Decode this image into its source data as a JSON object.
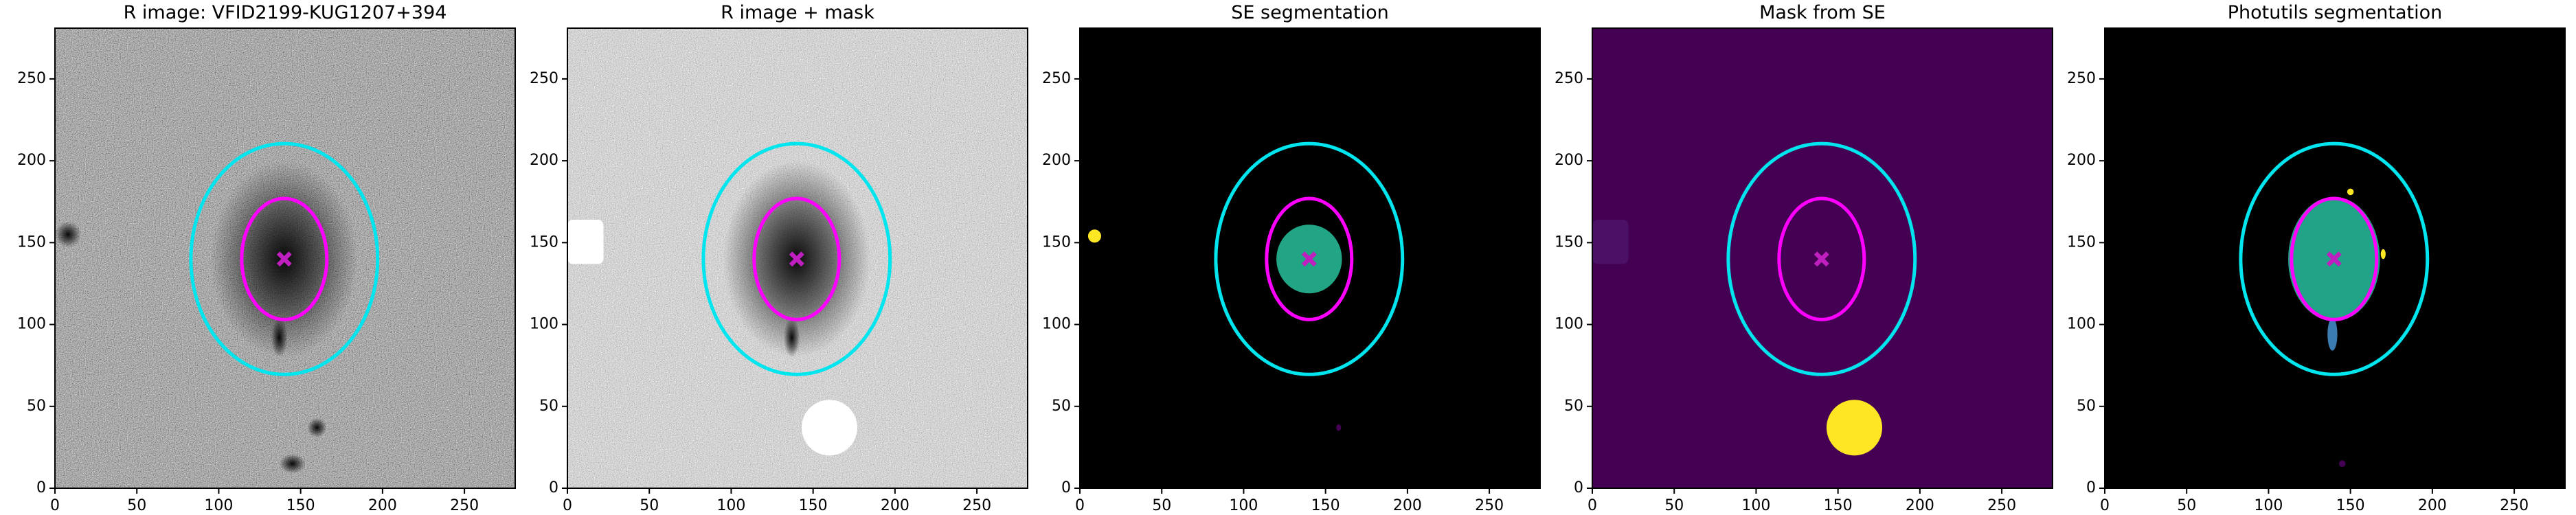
{
  "chart_data": [
    {
      "type": "image",
      "title": "R image: VFID2199-KUG1207+394",
      "background": "noise-dark",
      "xlim": [
        0,
        281
      ],
      "ylim": [
        0,
        281
      ],
      "xticks": [
        0,
        50,
        100,
        150,
        200,
        250
      ],
      "yticks": [
        0,
        50,
        100,
        150,
        200,
        250
      ],
      "regions": [
        {
          "shape": "ellipse",
          "cx": 140,
          "cy": 140,
          "rx": 45,
          "ry": 60,
          "color": "#000000",
          "fade": true
        },
        {
          "shape": "ellipse",
          "cx": 137,
          "cy": 92,
          "rx": 5,
          "ry": 12,
          "color": "#000000",
          "fade": true
        },
        {
          "shape": "ellipse",
          "cx": 8,
          "cy": 155,
          "rx": 8,
          "ry": 8,
          "color": "#000000",
          "fade": true
        },
        {
          "shape": "ellipse",
          "cx": 160,
          "cy": 37,
          "rx": 6,
          "ry": 6,
          "color": "#000000",
          "fade": true
        },
        {
          "shape": "ellipse",
          "cx": 145,
          "cy": 15,
          "rx": 8,
          "ry": 6,
          "color": "#000000",
          "fade": true
        }
      ],
      "ellipses": [
        {
          "cx": 140,
          "cy": 140,
          "width": 52,
          "height": 74,
          "color": "#ff00ff"
        },
        {
          "cx": 140,
          "cy": 140,
          "width": 114,
          "height": 141,
          "color": "#00e5ee"
        }
      ],
      "marker": {
        "x": 140,
        "y": 140,
        "color": "#bf1fbf"
      }
    },
    {
      "type": "image",
      "title": "R image + mask",
      "background": "noise-light",
      "xlim": [
        0,
        281
      ],
      "ylim": [
        0,
        281
      ],
      "xticks": [
        0,
        50,
        100,
        150,
        200,
        250
      ],
      "yticks": [
        0,
        50,
        100,
        150,
        200,
        250
      ],
      "regions": [
        {
          "shape": "ellipse",
          "cx": 140,
          "cy": 140,
          "rx": 45,
          "ry": 60,
          "color": "#000000",
          "fade": true
        },
        {
          "shape": "ellipse",
          "cx": 137,
          "cy": 92,
          "rx": 5,
          "ry": 12,
          "color": "#000000",
          "fade": true
        },
        {
          "shape": "rect",
          "x0": 0,
          "x1": 22,
          "y0": 137,
          "y1": 164,
          "color": "#ffffff"
        },
        {
          "shape": "ellipse",
          "cx": 160,
          "cy": 37,
          "rx": 17,
          "ry": 17,
          "color": "#ffffff"
        }
      ],
      "ellipses": [
        {
          "cx": 140,
          "cy": 140,
          "width": 52,
          "height": 74,
          "color": "#ff00ff"
        },
        {
          "cx": 140,
          "cy": 140,
          "width": 114,
          "height": 141,
          "color": "#00e5ee"
        }
      ],
      "marker": {
        "x": 140,
        "y": 140,
        "color": "#bf1fbf"
      }
    },
    {
      "type": "image",
      "title": "SE segmentation",
      "background": "#000000",
      "xlim": [
        0,
        281
      ],
      "ylim": [
        0,
        281
      ],
      "xticks": [
        0,
        50,
        100,
        150,
        200,
        250
      ],
      "yticks": [
        0,
        50,
        100,
        150,
        200,
        250
      ],
      "regions": [
        {
          "shape": "ellipse",
          "cx": 140,
          "cy": 140,
          "rx": 20,
          "ry": 21,
          "color": "#21a585"
        },
        {
          "shape": "ellipse",
          "cx": 9,
          "cy": 154,
          "rx": 4,
          "ry": 4,
          "color": "#fde725"
        },
        {
          "shape": "ellipse",
          "cx": 158,
          "cy": 37,
          "rx": 1.5,
          "ry": 2,
          "color": "#440154"
        }
      ],
      "ellipses": [
        {
          "cx": 140,
          "cy": 140,
          "width": 52,
          "height": 74,
          "color": "#ff00ff"
        },
        {
          "cx": 140,
          "cy": 140,
          "width": 114,
          "height": 141,
          "color": "#00e5ee"
        }
      ],
      "marker": {
        "x": 140,
        "y": 140,
        "color": "#bf1fbf"
      }
    },
    {
      "type": "image",
      "title": "Mask from SE",
      "background": "#440154",
      "xlim": [
        0,
        281
      ],
      "ylim": [
        0,
        281
      ],
      "xticks": [
        0,
        50,
        100,
        150,
        200,
        250
      ],
      "yticks": [
        0,
        50,
        100,
        150,
        200,
        250
      ],
      "regions": [
        {
          "shape": "rect",
          "x0": 0,
          "x1": 22,
          "y0": 137,
          "y1": 164,
          "color": "#4a1166"
        },
        {
          "shape": "ellipse",
          "cx": 160,
          "cy": 37,
          "rx": 17,
          "ry": 17,
          "color": "#fde725"
        }
      ],
      "ellipses": [
        {
          "cx": 140,
          "cy": 140,
          "width": 52,
          "height": 74,
          "color": "#ff00ff"
        },
        {
          "cx": 140,
          "cy": 140,
          "width": 114,
          "height": 141,
          "color": "#00e5ee"
        }
      ],
      "marker": {
        "x": 140,
        "y": 140,
        "color": "#bf1fbf"
      }
    },
    {
      "type": "image",
      "title": "Photutils segmentation",
      "background": "#000000",
      "xlim": [
        0,
        281
      ],
      "ylim": [
        0,
        281
      ],
      "xticks": [
        0,
        50,
        100,
        150,
        200,
        250
      ],
      "yticks": [
        0,
        50,
        100,
        150,
        200,
        250
      ],
      "regions": [
        {
          "shape": "ellipse",
          "cx": 140,
          "cy": 140,
          "rx": 28,
          "ry": 38,
          "color": "#20a386"
        },
        {
          "shape": "ellipse",
          "cx": 139,
          "cy": 94,
          "rx": 3,
          "ry": 10,
          "color": "#3b7cb2"
        },
        {
          "shape": "ellipse",
          "cx": 150,
          "cy": 181,
          "rx": 2,
          "ry": 2,
          "color": "#fde725"
        },
        {
          "shape": "ellipse",
          "cx": 170,
          "cy": 143,
          "rx": 1.5,
          "ry": 3,
          "color": "#fde725"
        },
        {
          "shape": "ellipse",
          "cx": 145,
          "cy": 15,
          "rx": 2,
          "ry": 2,
          "color": "#440154"
        }
      ],
      "ellipses": [
        {
          "cx": 140,
          "cy": 140,
          "width": 52,
          "height": 74,
          "color": "#ff00ff"
        },
        {
          "cx": 140,
          "cy": 140,
          "width": 114,
          "height": 141,
          "color": "#00e5ee"
        }
      ],
      "marker": {
        "x": 140,
        "y": 140,
        "color": "#bf1fbf"
      }
    }
  ]
}
